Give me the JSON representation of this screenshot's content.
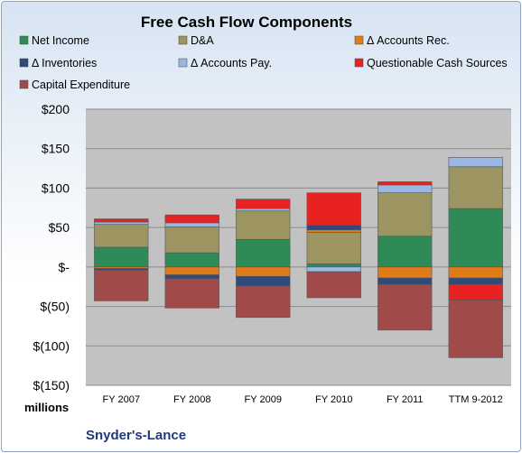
{
  "chart_data": {
    "type": "bar",
    "title": "Free Cash Flow Components",
    "categories": [
      "FY 2007",
      "FY 2008",
      "FY 2009",
      "FY 2010",
      "FY 2011",
      "TTM 9-2012"
    ],
    "y_ticks": [
      "$200",
      "$150",
      "$100",
      "$50",
      "$-",
      "$(50)",
      "$(100)",
      "$(150)"
    ],
    "ylim": [
      -150,
      200
    ],
    "unit_label": "millions",
    "footer": "Snyder's-Lance",
    "stacked": true,
    "grid": true,
    "legend_position": "top",
    "series": [
      {
        "name": "Net Income",
        "color": "#2e8b57",
        "values": [
          25,
          18,
          35,
          4,
          39,
          74
        ]
      },
      {
        "name": "D&A",
        "color": "#9c9461",
        "values": [
          29,
          33,
          36,
          40,
          55,
          53
        ]
      },
      {
        "name": "Δ Accounts Rec.",
        "color": "#e07b1a",
        "values": [
          -2,
          -10,
          -12,
          3,
          -14,
          -14
        ]
      },
      {
        "name": "Δ Inventories",
        "color": "#2f4a7d",
        "values": [
          -2,
          -5,
          -12,
          6,
          -8,
          -8
        ]
      },
      {
        "name": "Δ Accounts Pay.",
        "color": "#9bb7e3",
        "values": [
          3,
          5,
          3,
          -6,
          10,
          12
        ]
      },
      {
        "name": "Questionable Cash Sources",
        "color": "#e82121",
        "values": [
          4,
          10,
          12,
          41,
          4,
          -20
        ]
      },
      {
        "name": "Capital Expenditure",
        "color": "#a04a4a",
        "values": [
          -39,
          -37,
          -40,
          -33,
          -58,
          -73
        ]
      }
    ]
  }
}
